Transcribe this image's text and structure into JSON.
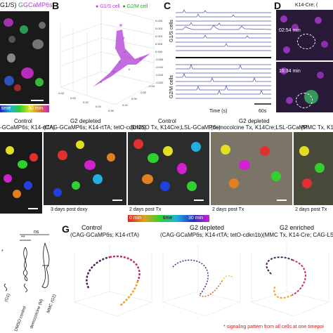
{
  "panel_a": {
    "header_g1s": "G1/S)",
    "header_gcamp": "GCaMP6s",
    "header_g": "G",
    "colorbar_left": "time",
    "colorbar_right": "30 min"
  },
  "panel_b": {
    "letter": "B",
    "legend_g1s": "G1/S cell",
    "legend_g2m": "G2/M cell",
    "z_ticks": [
      "0.020",
      "0.015",
      "0.010",
      "0.005",
      "0.000",
      "-0.005",
      "-0.010",
      "-0.015",
      "-0.020"
    ],
    "x_ticks": [
      "-0.02",
      "0.00",
      "0.02",
      "0.04",
      "0.06"
    ],
    "y_ticks": [
      "0.02",
      "0.00",
      "-0.02",
      "-0.04"
    ]
  },
  "panel_c": {
    "letter": "C",
    "label_g1s": "G1/S cells",
    "label_g2m": "G2/M cells",
    "xlabel": "Time (s)",
    "scale": "60s"
  },
  "panel_d": {
    "letter": "D",
    "header": "K14-Cre; (",
    "t1": "02:54 min",
    "t2": "16:34 min"
  },
  "row2": {
    "col1_title": "Control",
    "col1_sub": "-GCaMP6s; K14-rtTA)",
    "col2_title": "G2 depleted",
    "col2_sub": "(CAG-GCaMP6s; K14-rtTA; tetO-cdkn1b)",
    "col3_title": "Control",
    "col3_sub": "(DMSO Tx, K14Cre;LSL-GCaMP6s)",
    "col4_title": "G2 depleted",
    "col4_sub": "(democolcine Tx, K14Cre;LSL-GCaMP",
    "col5_sub": "(MMC Tx, K1",
    "cap2": "3 days post doxy",
    "cap3": "2 days post Tx",
    "cap4": "2 days post Tx",
    "cap5": "2 days post Tx",
    "cb_left": "0 min",
    "cb_mid": "time",
    "cb_right": "30 min"
  },
  "panel_f": {
    "sig1": "**",
    "sig2": "ns",
    "star_left": "*",
    "xlabels": [
      "(G1)",
      "DMSO control",
      "democolcine (M)",
      "MMC (G2)"
    ]
  },
  "panel_g": {
    "letter": "G",
    "t1": "Control",
    "s1": "(CAG-GCaMP6s; K14-rtTA)",
    "t2": "G2 depleted",
    "s2": "(CAG-GCaMP6s; K14-rtTA; tetO-cdkn1b)",
    "t3": "G2 enriched",
    "s3": "(MMC Tx, K14-Cre; CAG-LSL-G",
    "footnote": "* signaling pattern from all cells at one timepoi"
  },
  "colors": {
    "g1s": "#b03ad8",
    "g2m": "#2e9a2e",
    "trace": "#4a4fb0",
    "footnote": "#d02020"
  }
}
